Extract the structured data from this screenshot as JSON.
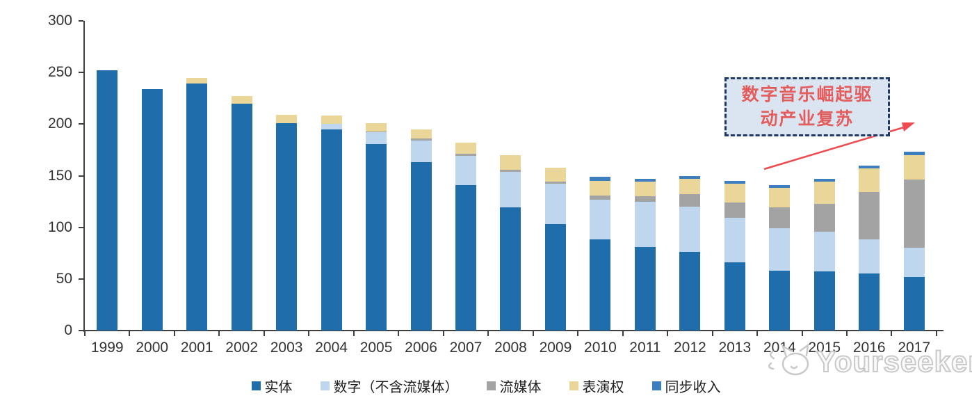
{
  "chart_data": {
    "type": "bar",
    "stacked": true,
    "title": "",
    "xlabel": "",
    "ylabel": "",
    "categories": [
      "1999",
      "2000",
      "2001",
      "2002",
      "2003",
      "2004",
      "2005",
      "2006",
      "2007",
      "2008",
      "2009",
      "2010",
      "2011",
      "2012",
      "2013",
      "2014",
      "2015",
      "2016",
      "2017"
    ],
    "series": [
      {
        "name": "实体",
        "color": "#1f6dab",
        "values": [
          252,
          234,
          239,
          220,
          201,
          195,
          181,
          163,
          141,
          119,
          103,
          88,
          81,
          76,
          66,
          58,
          57,
          55,
          52
        ]
      },
      {
        "name": "数字（不含流媒体）",
        "color": "#bed7ee",
        "values": [
          0,
          0,
          0,
          0,
          0,
          5,
          11,
          21,
          28,
          35,
          39,
          39,
          44,
          44,
          43,
          41,
          39,
          33,
          28
        ]
      },
      {
        "name": "流媒体",
        "color": "#a3a3a3",
        "values": [
          0,
          0,
          0,
          0,
          0,
          0,
          1,
          2,
          2,
          2,
          2,
          4,
          5,
          12,
          15,
          20,
          27,
          46,
          66
        ]
      },
      {
        "name": "表演权",
        "color": "#e9d698",
        "values": [
          0,
          0,
          6,
          7,
          8,
          8,
          8,
          9,
          11,
          14,
          14,
          14,
          14,
          15,
          18,
          19,
          21,
          23,
          24
        ]
      },
      {
        "name": "同步收入",
        "color": "#3c7ebf",
        "values": [
          0,
          0,
          0,
          0,
          0,
          0,
          0,
          0,
          0,
          0,
          0,
          4,
          3,
          3,
          3,
          3,
          3,
          3,
          3
        ]
      }
    ],
    "ylim": [
      0,
      300
    ],
    "yticks": [
      0,
      50,
      100,
      150,
      200,
      250,
      300
    ],
    "grid": false,
    "legend_position": "bottom"
  },
  "annotation": {
    "lines": [
      "数字音乐崛起驱",
      "动产业复苏"
    ],
    "box_fill": "#dbe5f1",
    "border_color": "#203864",
    "text_color": "#e35d5d",
    "arrow_color": "#ef4a50"
  },
  "watermark": {
    "text": "Yourseeker",
    "icon": "cat-logo-icon"
  },
  "colors": {
    "axis": "#3f3f3f",
    "tick_label": "#333333"
  }
}
